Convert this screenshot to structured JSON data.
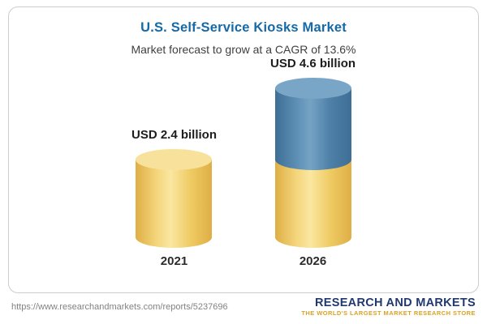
{
  "header": {
    "title": "U.S. Self-Service Kiosks Market",
    "subtitle": "Market forecast to grow at a CAGR of 13.6%"
  },
  "chart_data": {
    "type": "bar",
    "title": "U.S. Self-Service Kiosks Market",
    "subtitle": "Market forecast to grow at a CAGR of 13.6%",
    "categories": [
      "2021",
      "2026"
    ],
    "values": [
      2.4,
      4.6
    ],
    "value_labels": [
      "USD 2.4 billion",
      "USD 4.6 billion"
    ],
    "unit": "USD billion",
    "cagr": "13.6%",
    "colors": {
      "base_segment": "#F2CE6B",
      "growth_segment": "#4E81A9"
    },
    "layout_hints": {
      "bar_style": "3d-cylinder",
      "stacked_second_bar": "yellow base equals 2021 value, blue top is growth to 2026",
      "grid": "off",
      "legend": "none"
    }
  },
  "footer": {
    "url": "https://www.researchandmarkets.com/reports/5237696",
    "logo_text": "RESEARCH AND MARKETS",
    "logo_tagline": "THE WORLD'S LARGEST MARKET RESEARCH STORE"
  }
}
